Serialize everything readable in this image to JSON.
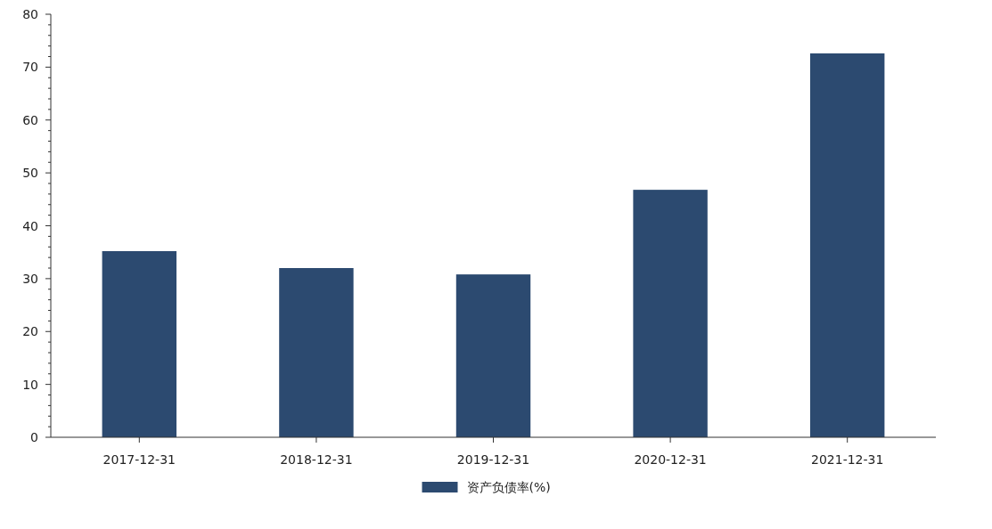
{
  "chart_data": {
    "type": "bar",
    "categories": [
      "2017-12-31",
      "2018-12-31",
      "2019-12-31",
      "2020-12-31",
      "2021-12-31"
    ],
    "series": [
      {
        "name": "资产负债率(%)",
        "color": "#2c4a70",
        "values": [
          35.2,
          32.0,
          30.8,
          46.8,
          72.6
        ]
      }
    ],
    "ylim": [
      0,
      80
    ],
    "yticks": [
      0,
      {
        "value": 2,
        "label": null
      },
      {
        "value": 4,
        "label": null
      },
      {
        "value": 6,
        "label": null
      },
      {
        "value": 8,
        "label": null
      },
      10,
      {
        "value": 12,
        "label": null
      },
      {
        "value": 14,
        "label": null
      },
      {
        "value": 16,
        "label": null
      },
      {
        "value": 18,
        "label": null
      },
      20,
      {
        "value": 22,
        "label": null
      },
      {
        "value": 24,
        "label": null
      },
      {
        "value": 26,
        "label": null
      },
      {
        "value": 28,
        "label": null
      },
      30,
      {
        "value": 32,
        "label": null
      },
      {
        "value": 34,
        "label": null
      },
      {
        "value": 36,
        "label": null
      },
      {
        "value": 38,
        "label": null
      },
      40,
      {
        "value": 42,
        "label": null
      },
      {
        "value": 44,
        "label": null
      },
      {
        "value": 46,
        "label": null
      },
      {
        "value": 48,
        "label": null
      },
      50,
      {
        "value": 52,
        "label": null
      },
      {
        "value": 54,
        "label": null
      },
      {
        "value": 56,
        "label": null
      },
      {
        "value": 58,
        "label": null
      },
      60,
      {
        "value": 62,
        "label": null
      },
      {
        "value": 64,
        "label": null
      },
      {
        "value": 66,
        "label": null
      },
      {
        "value": 68,
        "label": null
      },
      70,
      {
        "value": 72,
        "label": null
      },
      {
        "value": 74,
        "label": null
      },
      {
        "value": 76,
        "label": null
      },
      {
        "value": 78,
        "label": null
      },
      80
    ],
    "grid": false,
    "legend": "bottom"
  }
}
